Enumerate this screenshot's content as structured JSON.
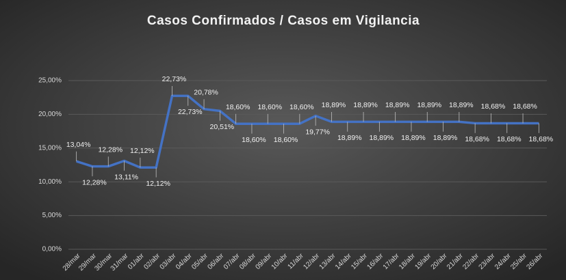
{
  "chart_data": {
    "type": "line",
    "title": "Casos Confirmados / Casos em Vigilancia",
    "categories": [
      "28/mar",
      "29/mar",
      "30/mar",
      "31/mar",
      "01/abr",
      "02/abr",
      "03/abr",
      "04/abr",
      "05/abr",
      "06/abr",
      "07/abr",
      "08/abr",
      "09/abr",
      "10/abr",
      "11/abr",
      "12/abr",
      "13/abr",
      "14/abr",
      "15/abr",
      "16/abr",
      "17/abr",
      "18/abr",
      "19/abr",
      "20/abr",
      "21/abr",
      "22/abr",
      "23/abr",
      "24/abr",
      "25/abr",
      "26/abr"
    ],
    "series": [
      {
        "color": "#4472c4",
        "values": [
          13.04,
          12.28,
          12.28,
          13.11,
          12.12,
          12.12,
          22.73,
          22.73,
          20.78,
          20.51,
          18.6,
          18.6,
          18.6,
          18.6,
          18.6,
          19.77,
          18.89,
          18.89,
          18.89,
          18.89,
          18.89,
          18.89,
          18.89,
          18.89,
          18.89,
          18.68,
          18.68,
          18.68,
          18.68,
          18.68
        ],
        "value_labels": [
          "13,04%",
          "12,28%",
          "12,28%",
          "13,11%",
          "12,12%",
          "12,12%",
          "22,73%",
          "22,73%",
          "20,78%",
          "20,51%",
          "18,60%",
          "18,60%",
          "18,60%",
          "18,60%",
          "18,60%",
          "19,77%",
          "18,89%",
          "18,89%",
          "18,89%",
          "18,89%",
          "18,89%",
          "18,89%",
          "18,89%",
          "18,89%",
          "18,89%",
          "18,68%",
          "18,68%",
          "18,68%",
          "18,68%",
          "18,68%"
        ]
      }
    ],
    "ylim": [
      0,
      25
    ],
    "yticks": [
      {
        "value": 0,
        "label": "0,00%"
      },
      {
        "value": 5,
        "label": "5,00%"
      },
      {
        "value": 10,
        "label": "10,00%"
      },
      {
        "value": 15,
        "label": "15,00%"
      },
      {
        "value": 20,
        "label": "20,00%"
      },
      {
        "value": 25,
        "label": "25,00%"
      }
    ],
    "grid": true
  }
}
